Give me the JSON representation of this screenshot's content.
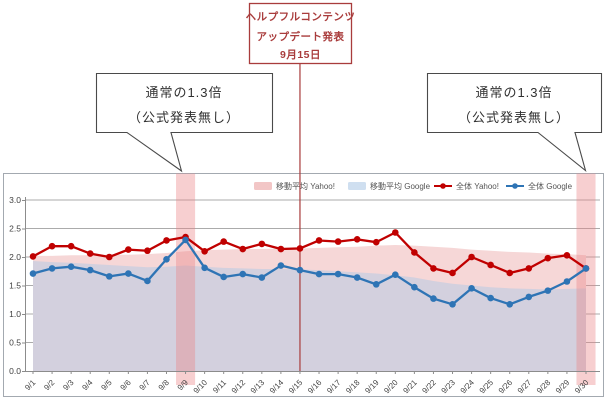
{
  "annotations": {
    "event_box": {
      "line1": "ヘルプフルコンテンツ",
      "line2": "アップデート発表",
      "line3": "9月15日"
    },
    "left_callout": {
      "line1": "通常の1.3倍",
      "line2": "（公式発表無し）"
    },
    "right_callout": {
      "line1": "通常の1.3倍",
      "line2": "（公式発表無し）"
    }
  },
  "chart_data": {
    "type": "line",
    "title": "",
    "xlabel": "",
    "ylabel": "",
    "ylim": [
      0.0,
      3.0
    ],
    "ytick_step": 0.5,
    "grid": true,
    "legend_position": "top",
    "x": [
      "9/1",
      "9/2",
      "9/3",
      "9/4",
      "9/5",
      "9/6",
      "9/7",
      "9/8",
      "9/9",
      "9/10",
      "9/11",
      "9/12",
      "9/13",
      "9/14",
      "9/15",
      "9/16",
      "9/17",
      "9/18",
      "9/19",
      "9/20",
      "9/21",
      "9/22",
      "9/23",
      "9/24",
      "9/25",
      "9/26",
      "9/27",
      "9/28",
      "9/29",
      "9/30"
    ],
    "series": [
      {
        "name": "移動平均 Yahoo!",
        "type": "area",
        "color": "#f6d7d7",
        "legend_color": "#f2c6c6",
        "values": [
          2.02,
          2.02,
          2.03,
          2.03,
          2.04,
          2.04,
          2.05,
          2.07,
          2.1,
          2.12,
          2.13,
          2.14,
          2.14,
          2.15,
          2.15,
          2.16,
          2.17,
          2.18,
          2.2,
          2.21,
          2.2,
          2.18,
          2.16,
          2.13,
          2.11,
          2.09,
          2.08,
          2.06,
          2.05,
          2.03
        ]
      },
      {
        "name": "移動平均 Google",
        "type": "area",
        "color": "rgba(183,203,228,0.55)",
        "legend_color": "#cfdff0",
        "values": [
          1.93,
          1.91,
          1.9,
          1.88,
          1.86,
          1.84,
          1.82,
          1.83,
          1.85,
          1.83,
          1.81,
          1.8,
          1.79,
          1.79,
          1.78,
          1.77,
          1.75,
          1.73,
          1.71,
          1.68,
          1.64,
          1.58,
          1.53,
          1.5,
          1.47,
          1.45,
          1.44,
          1.43,
          1.44,
          1.45
        ]
      },
      {
        "name": "全体 Yahoo!",
        "type": "line",
        "color": "#c00000",
        "legend_color": "#c00000",
        "values": [
          2.01,
          2.19,
          2.19,
          2.06,
          2.0,
          2.13,
          2.11,
          2.29,
          2.35,
          2.1,
          2.27,
          2.14,
          2.23,
          2.14,
          2.15,
          2.29,
          2.27,
          2.31,
          2.26,
          2.43,
          2.08,
          1.8,
          1.72,
          2.0,
          1.86,
          1.72,
          1.8,
          1.98,
          2.03,
          1.8
        ]
      },
      {
        "name": "全体 Google",
        "type": "line",
        "color": "#2e74b5",
        "legend_color": "#2e74b5",
        "values": [
          1.71,
          1.8,
          1.83,
          1.77,
          1.66,
          1.71,
          1.58,
          1.96,
          2.3,
          1.81,
          1.65,
          1.7,
          1.64,
          1.85,
          1.77,
          1.7,
          1.7,
          1.64,
          1.52,
          1.69,
          1.47,
          1.27,
          1.17,
          1.45,
          1.28,
          1.17,
          1.3,
          1.41,
          1.57,
          1.8
        ]
      }
    ],
    "highlighted_x": [
      "9/9",
      "9/30"
    ],
    "event_line_x": "9/15",
    "highlight_band_color": "rgba(233,128,131,0.38)",
    "highlight_label_color": "#9c4343"
  },
  "colors": {
    "yahoo_line": "#c00000",
    "google_line": "#2e74b5",
    "event_accent": "#a93c3c",
    "gridline": "#ababab",
    "axis": "#8c8c8c",
    "chart_border": "#a3a9b0"
  }
}
